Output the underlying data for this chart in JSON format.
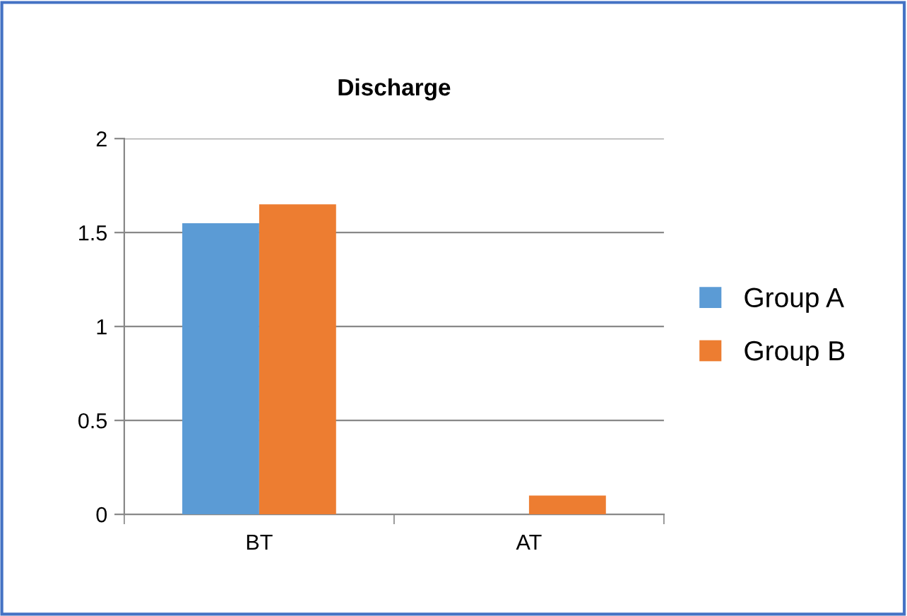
{
  "chart_data": {
    "type": "bar",
    "title": "Discharge",
    "categories": [
      "BT",
      "AT"
    ],
    "series": [
      {
        "name": "Group A",
        "color": "#5b9bd5",
        "values": [
          1.55,
          0
        ]
      },
      {
        "name": "Group B",
        "color": "#ed7d31",
        "values": [
          1.65,
          0.1
        ]
      }
    ],
    "ylim": [
      0,
      2
    ],
    "yticks": [
      0,
      0.5,
      1,
      1.5,
      2
    ],
    "grid": "y",
    "legend": "right"
  }
}
